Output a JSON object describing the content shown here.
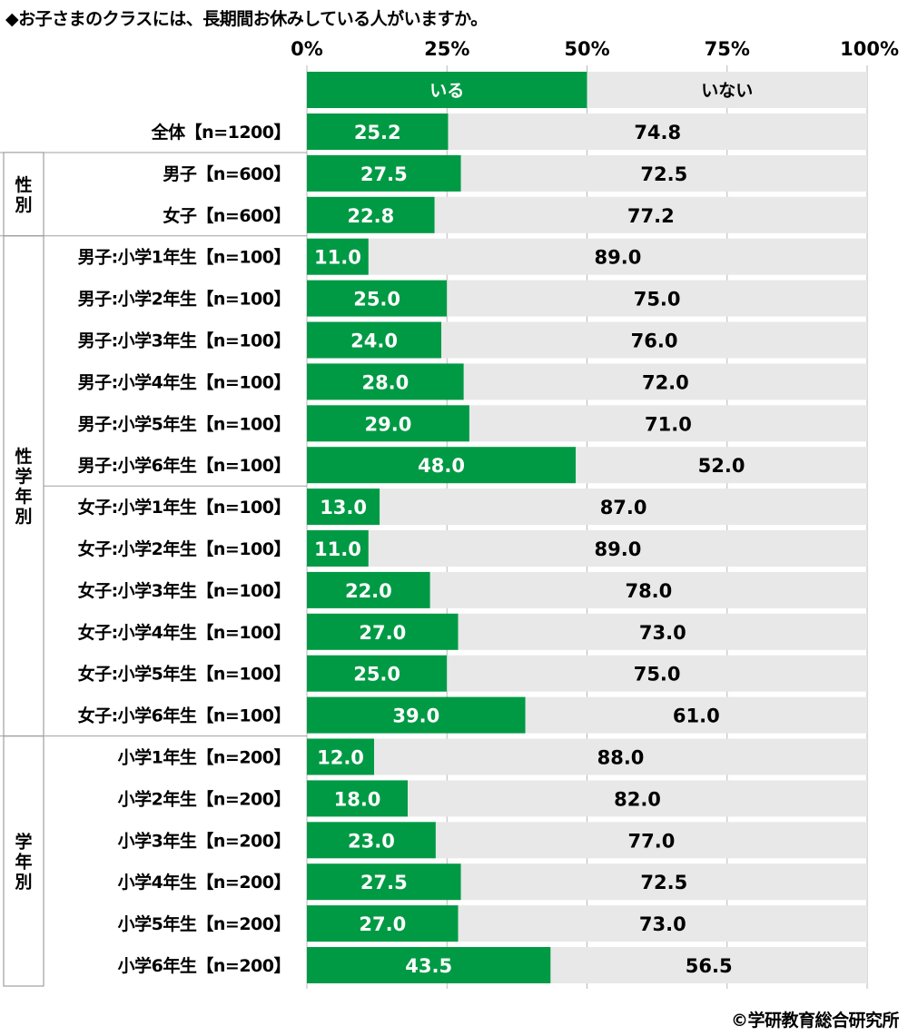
{
  "title": "◆お子さまのクラスには、長期間お休みしている人がいますか。",
  "credit": "©学研教育総合研究所",
  "colors": {
    "yes": "#009a44",
    "no": "#e8e8e8",
    "grid": "#b8b8b8",
    "group_border": "#a0a0a0"
  },
  "chart_data": {
    "type": "bar",
    "orientation": "horizontal",
    "stacked": true,
    "xlim": [
      0,
      100
    ],
    "x_ticks": [
      "0%",
      "25%",
      "50%",
      "75%",
      "100%"
    ],
    "legend": [
      "いる",
      "いない"
    ],
    "legend_placement": "top",
    "categories": [
      "全体【n=1200】",
      "男子【n=600】",
      "女子【n=600】",
      "男子:小学1年生【n=100】",
      "男子:小学2年生【n=100】",
      "男子:小学3年生【n=100】",
      "男子:小学4年生【n=100】",
      "男子:小学5年生【n=100】",
      "男子:小学6年生【n=100】",
      "女子:小学1年生【n=100】",
      "女子:小学2年生【n=100】",
      "女子:小学3年生【n=100】",
      "女子:小学4年生【n=100】",
      "女子:小学5年生【n=100】",
      "女子:小学6年生【n=100】",
      "小学1年生【n=200】",
      "小学2年生【n=200】",
      "小学3年生【n=200】",
      "小学4年生【n=200】",
      "小学5年生【n=200】",
      "小学6年生【n=200】"
    ],
    "series": [
      {
        "name": "いる",
        "values": [
          25.2,
          27.5,
          22.8,
          11.0,
          25.0,
          24.0,
          28.0,
          29.0,
          48.0,
          13.0,
          11.0,
          22.0,
          27.0,
          25.0,
          39.0,
          12.0,
          18.0,
          23.0,
          27.5,
          27.0,
          43.5
        ]
      },
      {
        "name": "いない",
        "values": [
          74.8,
          72.5,
          77.2,
          89.0,
          75.0,
          76.0,
          72.0,
          71.0,
          52.0,
          87.0,
          89.0,
          78.0,
          73.0,
          75.0,
          61.0,
          88.0,
          82.0,
          77.0,
          72.5,
          73.0,
          56.5
        ]
      }
    ],
    "groups": [
      {
        "label": "性別",
        "rows": [
          1,
          2
        ]
      },
      {
        "label": "性学年別",
        "rows": [
          3,
          14
        ]
      },
      {
        "label": "学年別",
        "rows": [
          15,
          20
        ]
      }
    ],
    "grid": true
  }
}
